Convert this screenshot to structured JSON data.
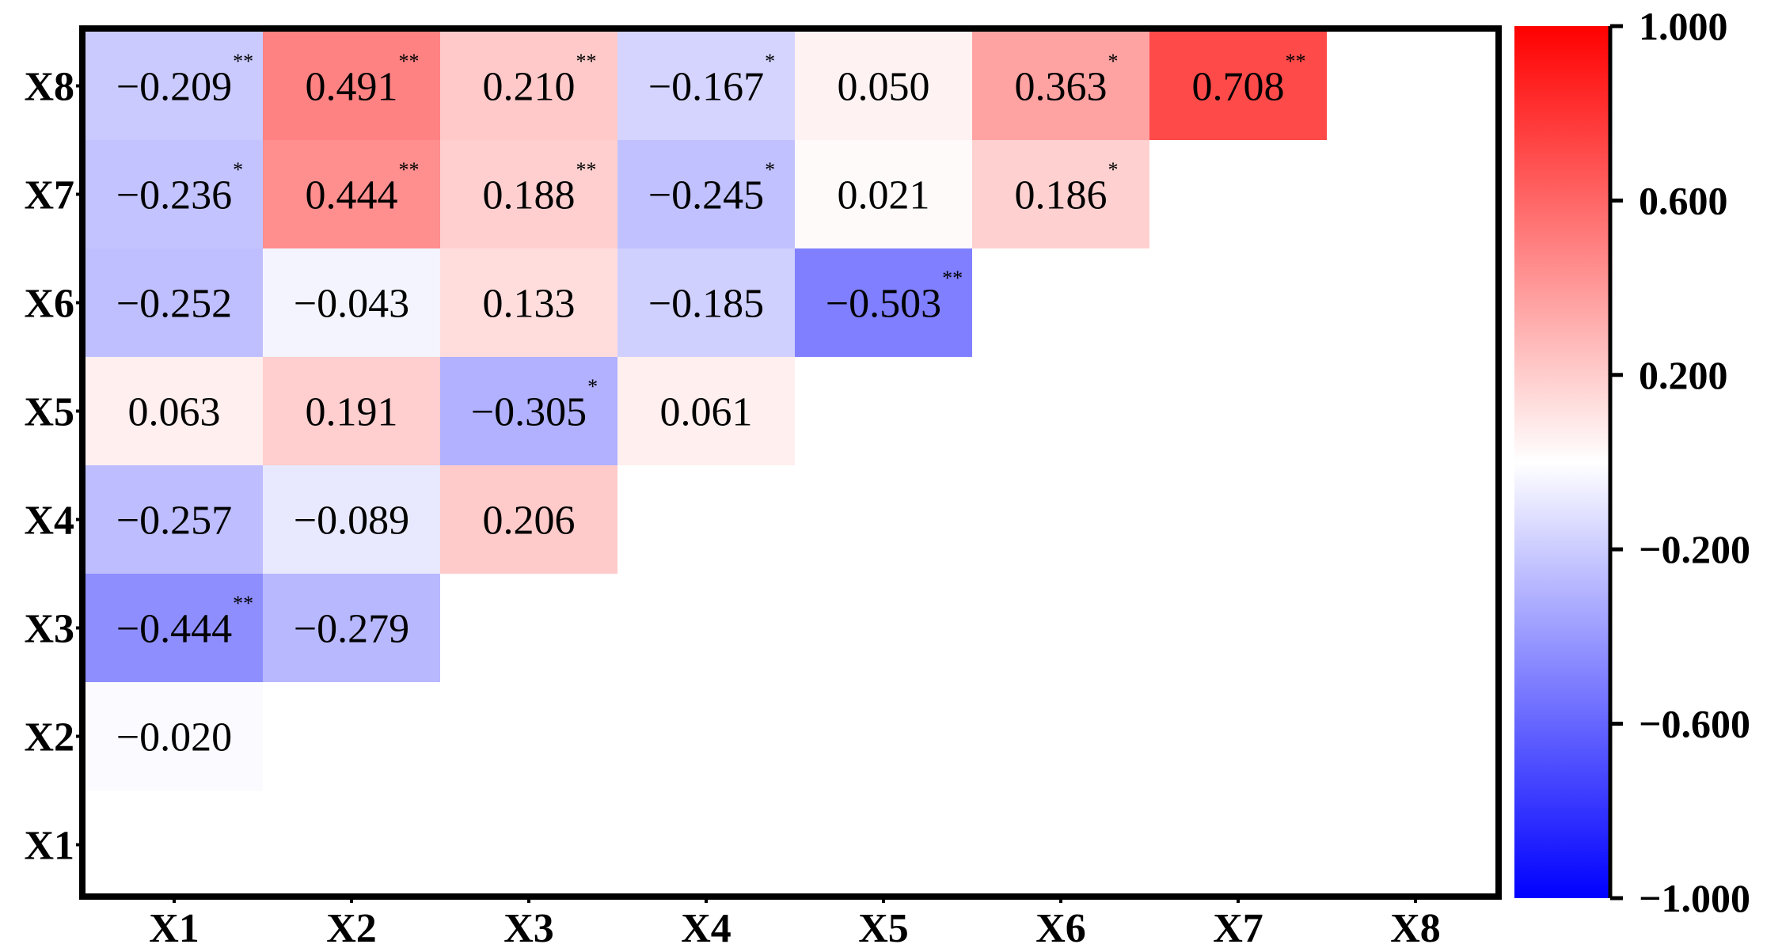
{
  "chart_data": {
    "type": "heatmap",
    "title": "",
    "xlabel": "",
    "ylabel": "",
    "x_categories": [
      "X1",
      "X2",
      "X3",
      "X4",
      "X5",
      "X6",
      "X7",
      "X8"
    ],
    "y_categories": [
      "X1",
      "X2",
      "X3",
      "X4",
      "X5",
      "X6",
      "X7",
      "X8"
    ],
    "layout": "lower-triangle",
    "cells": [
      {
        "row": "X2",
        "col": "X1",
        "value": -0.02,
        "label": "−0.020",
        "sig": ""
      },
      {
        "row": "X3",
        "col": "X1",
        "value": -0.444,
        "label": "−0.444",
        "sig": "**"
      },
      {
        "row": "X3",
        "col": "X2",
        "value": -0.279,
        "label": "−0.279",
        "sig": ""
      },
      {
        "row": "X4",
        "col": "X1",
        "value": -0.257,
        "label": "−0.257",
        "sig": ""
      },
      {
        "row": "X4",
        "col": "X2",
        "value": -0.089,
        "label": "−0.089",
        "sig": ""
      },
      {
        "row": "X4",
        "col": "X3",
        "value": 0.206,
        "label": "0.206",
        "sig": ""
      },
      {
        "row": "X5",
        "col": "X1",
        "value": 0.063,
        "label": "0.063",
        "sig": ""
      },
      {
        "row": "X5",
        "col": "X2",
        "value": 0.191,
        "label": "0.191",
        "sig": ""
      },
      {
        "row": "X5",
        "col": "X3",
        "value": -0.305,
        "label": "−0.305",
        "sig": "*"
      },
      {
        "row": "X5",
        "col": "X4",
        "value": 0.061,
        "label": "0.061",
        "sig": ""
      },
      {
        "row": "X6",
        "col": "X1",
        "value": -0.252,
        "label": "−0.252",
        "sig": ""
      },
      {
        "row": "X6",
        "col": "X2",
        "value": -0.043,
        "label": "−0.043",
        "sig": ""
      },
      {
        "row": "X6",
        "col": "X3",
        "value": 0.133,
        "label": "0.133",
        "sig": ""
      },
      {
        "row": "X6",
        "col": "X4",
        "value": -0.185,
        "label": "−0.185",
        "sig": ""
      },
      {
        "row": "X6",
        "col": "X5",
        "value": -0.503,
        "label": "−0.503",
        "sig": "**"
      },
      {
        "row": "X7",
        "col": "X1",
        "value": -0.236,
        "label": "−0.236",
        "sig": "*"
      },
      {
        "row": "X7",
        "col": "X2",
        "value": 0.444,
        "label": "0.444",
        "sig": "**"
      },
      {
        "row": "X7",
        "col": "X3",
        "value": 0.188,
        "label": "0.188",
        "sig": "**"
      },
      {
        "row": "X7",
        "col": "X4",
        "value": -0.245,
        "label": "−0.245",
        "sig": "*"
      },
      {
        "row": "X7",
        "col": "X5",
        "value": 0.021,
        "label": "0.021",
        "sig": ""
      },
      {
        "row": "X7",
        "col": "X6",
        "value": 0.186,
        "label": "0.186",
        "sig": "*"
      },
      {
        "row": "X8",
        "col": "X1",
        "value": -0.209,
        "label": "−0.209",
        "sig": "**"
      },
      {
        "row": "X8",
        "col": "X2",
        "value": 0.491,
        "label": "0.491",
        "sig": "**"
      },
      {
        "row": "X8",
        "col": "X3",
        "value": 0.21,
        "label": "0.210",
        "sig": "**"
      },
      {
        "row": "X8",
        "col": "X4",
        "value": -0.167,
        "label": "−0.167",
        "sig": "*"
      },
      {
        "row": "X8",
        "col": "X5",
        "value": 0.05,
        "label": "0.050",
        "sig": ""
      },
      {
        "row": "X8",
        "col": "X6",
        "value": 0.363,
        "label": "0.363",
        "sig": "*"
      },
      {
        "row": "X8",
        "col": "X7",
        "value": 0.708,
        "label": "0.708",
        "sig": "**"
      }
    ],
    "colorbar": {
      "range": [
        -1.0,
        1.0
      ],
      "ticks": [
        1.0,
        0.6,
        0.2,
        -0.2,
        -0.6,
        -1.0
      ],
      "tick_labels": [
        "1.000",
        "0.600",
        "0.200",
        "−0.200",
        "−0.600",
        "−1.000"
      ],
      "placement": "right",
      "color_low": "#0000ff",
      "color_mid": "#ffffff",
      "color_high": "#ff0000"
    },
    "grid": false,
    "legend": "colorbar-right"
  }
}
